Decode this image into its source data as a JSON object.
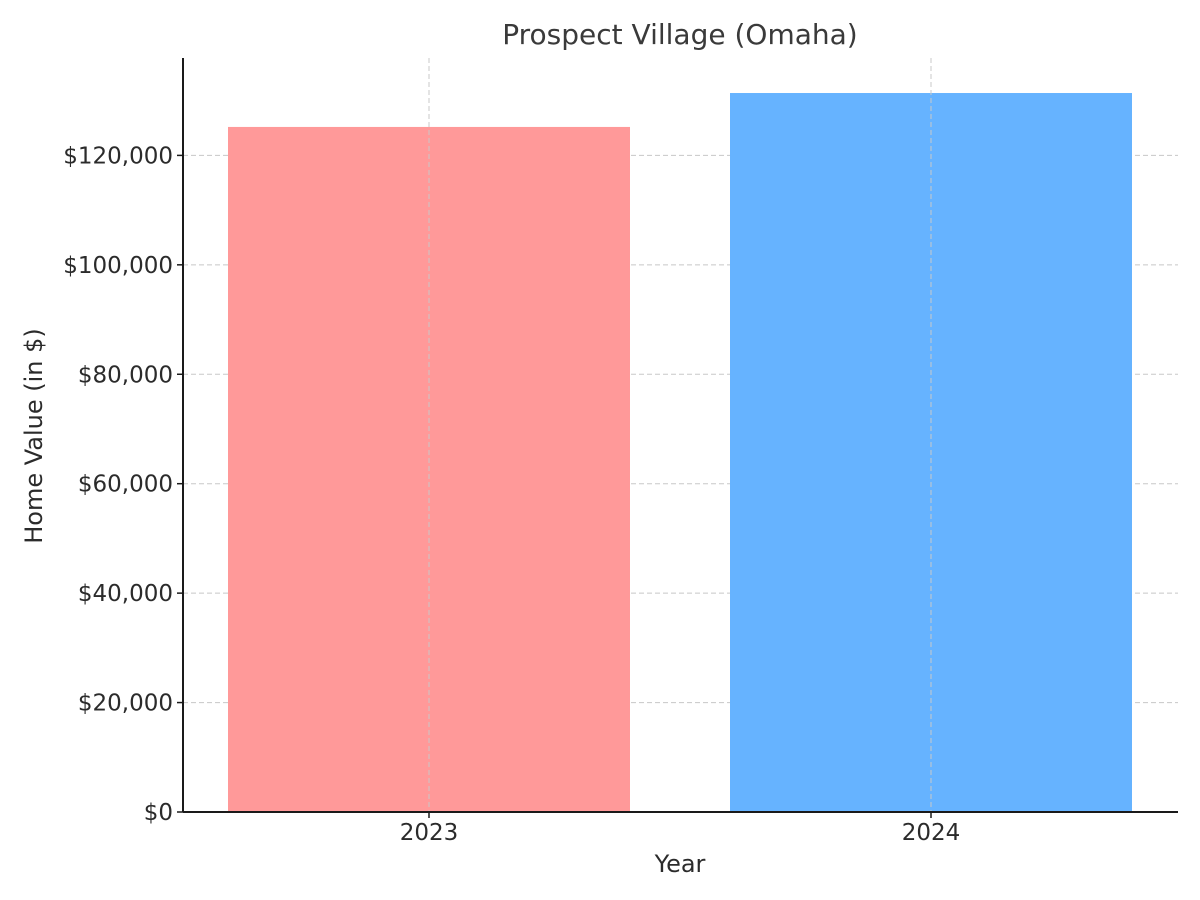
{
  "chart_data": {
    "type": "bar",
    "title": "Prospect Village (Omaha)",
    "xlabel": "Year",
    "ylabel": "Home Value (in $)",
    "categories": [
      "2023",
      "2024"
    ],
    "values": [
      125200,
      131400
    ],
    "colors": [
      "#ff9999",
      "#66b3ff"
    ],
    "ylim": [
      0,
      137800
    ],
    "y_ticks": [
      0,
      20000,
      40000,
      60000,
      80000,
      100000,
      120000
    ],
    "y_tick_labels": [
      "$0",
      "$20,000",
      "$40,000",
      "$60,000",
      "$80,000",
      "$100,000",
      "$120,000"
    ],
    "grid": true,
    "legend": "none"
  }
}
